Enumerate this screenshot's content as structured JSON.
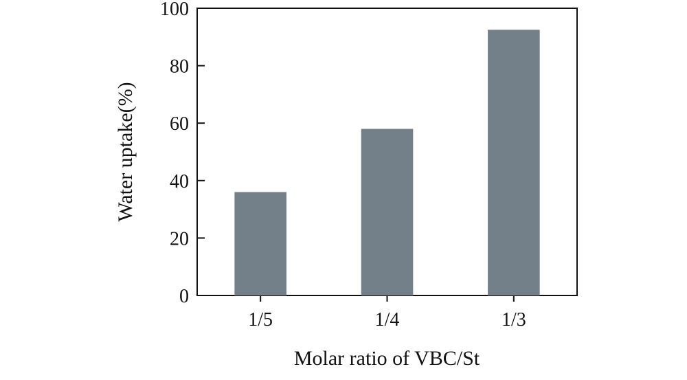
{
  "chart_data": {
    "type": "bar",
    "categories": [
      "1/5",
      "1/4",
      "1/3"
    ],
    "values": [
      36,
      58,
      92.5
    ],
    "xlabel": "Molar ratio of VBC/St",
    "ylabel": "Water uptake(%)",
    "ylim": [
      0,
      100
    ],
    "yticks": [
      0,
      20,
      40,
      60,
      80,
      100
    ],
    "grid": false,
    "legend": "none",
    "bar_color": "#737f89"
  }
}
